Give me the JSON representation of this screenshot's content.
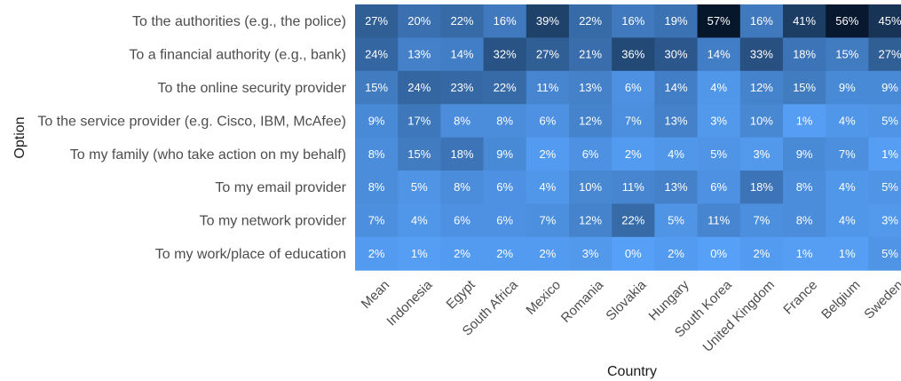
{
  "chart_data": {
    "type": "heatmap",
    "xlabel": "Country",
    "ylabel": "Option",
    "value_suffix": "%",
    "color_low": "#56a0f7",
    "color_high": "#06162b",
    "color_domain": [
      0,
      57
    ],
    "columns": [
      "Mean",
      "Indonesia",
      "Egypt",
      "South Africa",
      "Mexico",
      "Romania",
      "Slovakia",
      "Hungary",
      "South Korea",
      "United Kingdom",
      "France",
      "Belgium",
      "Sweden"
    ],
    "rows": [
      {
        "label": "To the authorities (e.g., the police)",
        "values": [
          27,
          20,
          22,
          16,
          39,
          22,
          16,
          19,
          57,
          16,
          41,
          56,
          45
        ]
      },
      {
        "label": "To a financial authority (e.g., bank)",
        "values": [
          24,
          13,
          14,
          32,
          27,
          21,
          36,
          30,
          14,
          33,
          18,
          15,
          27
        ]
      },
      {
        "label": "To the online security provider",
        "values": [
          15,
          24,
          23,
          22,
          11,
          13,
          6,
          14,
          4,
          12,
          15,
          9,
          9
        ]
      },
      {
        "label": "To the service provider (e.g. Cisco, IBM, McAfee)",
        "values": [
          9,
          17,
          8,
          8,
          6,
          12,
          7,
          13,
          3,
          10,
          1,
          4,
          5
        ]
      },
      {
        "label": "To my family (who take action on my behalf)",
        "values": [
          8,
          15,
          18,
          9,
          2,
          6,
          2,
          4,
          5,
          3,
          9,
          7,
          1
        ]
      },
      {
        "label": "To my email provider",
        "values": [
          8,
          5,
          8,
          6,
          4,
          10,
          11,
          13,
          6,
          18,
          8,
          4,
          5
        ]
      },
      {
        "label": "To my network provider",
        "values": [
          7,
          4,
          6,
          6,
          7,
          12,
          22,
          5,
          11,
          7,
          8,
          4,
          3
        ]
      },
      {
        "label": "To my work/place of education",
        "values": [
          2,
          1,
          2,
          2,
          2,
          3,
          0,
          2,
          0,
          2,
          1,
          1,
          5
        ]
      }
    ]
  }
}
